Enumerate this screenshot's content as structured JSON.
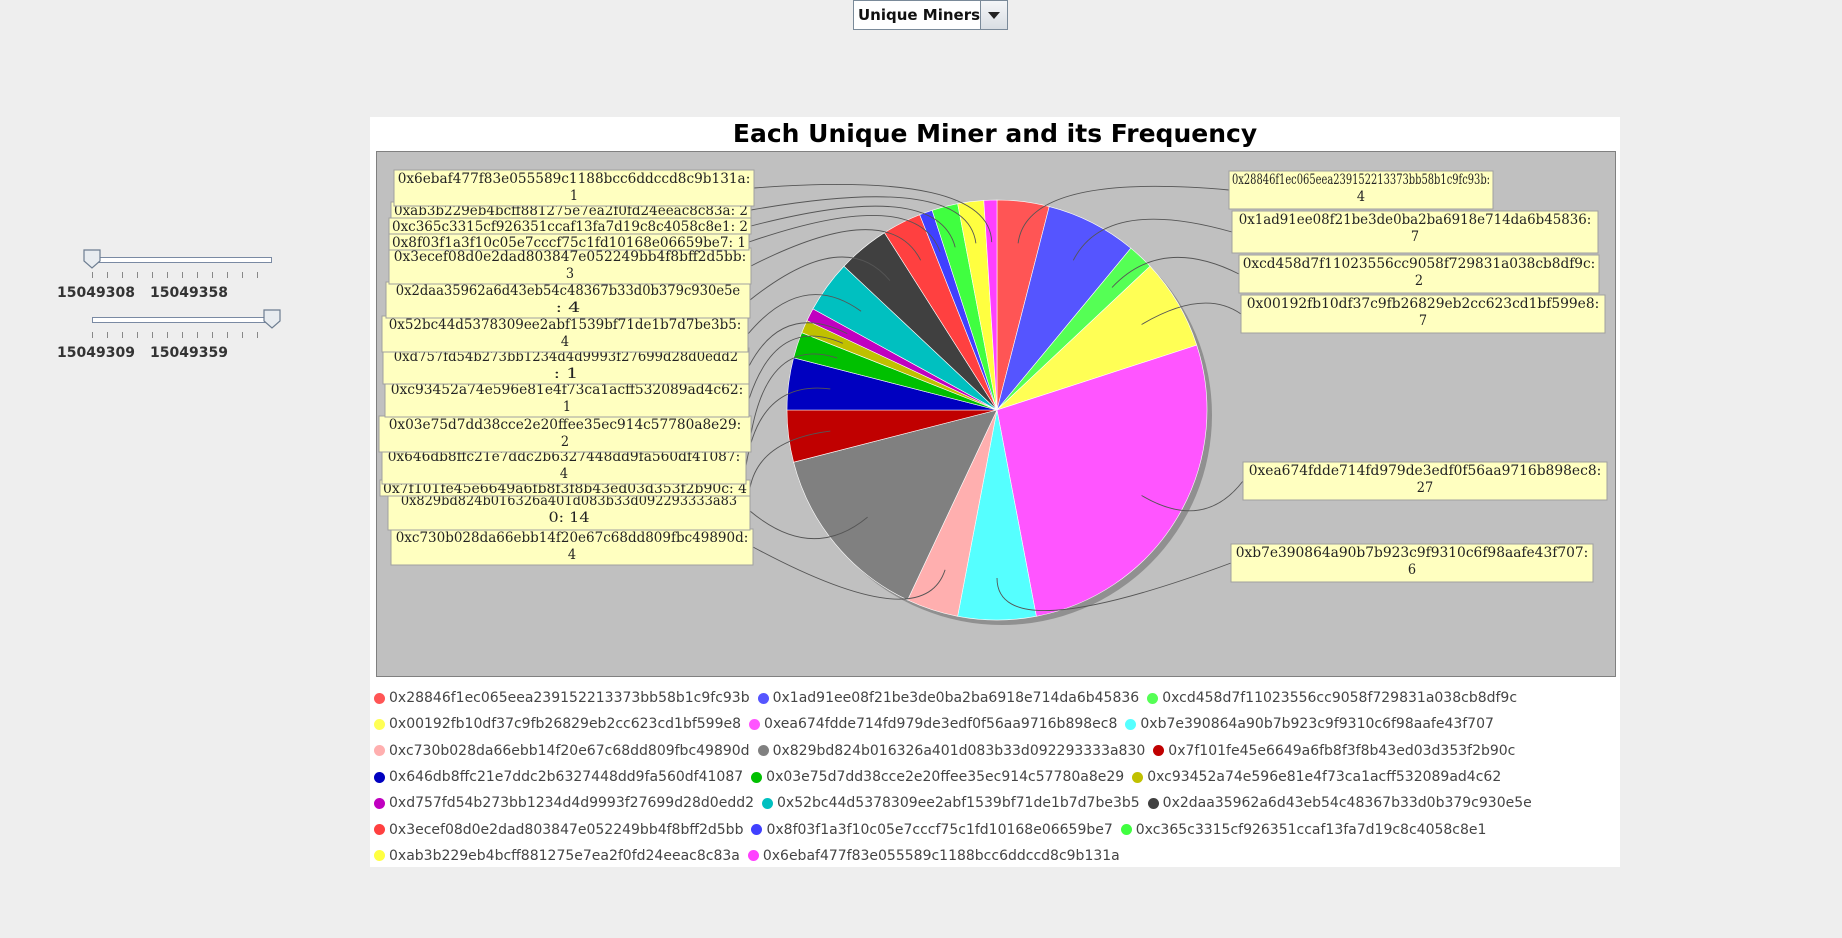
{
  "dropdown": {
    "selected": "Unique Miners"
  },
  "sliders": [
    {
      "min": 15049308,
      "max": 15049358,
      "value": 15049308,
      "labels": [
        "15049308",
        "15049358"
      ]
    },
    {
      "min": 15049309,
      "max": 15049359,
      "value": 15049359,
      "labels": [
        "15049309",
        "15049359"
      ]
    }
  ],
  "chart_data": {
    "type": "pie",
    "title": "Each Unique Miner and its Frequency",
    "background": "#c0c0c0",
    "slices": [
      {
        "label": "0x28846f1ec065eea239152213373bb58b1c9fc93b",
        "value": 4,
        "color": "#ff5555",
        "label_text": [
          "0x28846f1ec065eea239152213373bb58b1c9fc93b:",
          "4"
        ]
      },
      {
        "label": "0x1ad91ee08f21be3de0ba2ba6918e714da6b45836",
        "value": 7,
        "color": "#5555ff",
        "label_text": [
          "0x1ad91ee08f21be3de0ba2ba6918e714da6b45836:",
          "7"
        ]
      },
      {
        "label": "0xcd458d7f11023556cc9058f729831a038cb8df9c",
        "value": 2,
        "color": "#55ff55",
        "label_text": [
          "0xcd458d7f11023556cc9058f729831a038cb8df9c:",
          "2"
        ]
      },
      {
        "label": "0x00192fb10df37c9fb26829eb2cc623cd1bf599e8",
        "value": 7,
        "color": "#ffff55",
        "label_text": [
          "0x00192fb10df37c9fb26829eb2cc623cd1bf599e8:",
          "7"
        ]
      },
      {
        "label": "0xea674fdde714fd979de3edf0f56aa9716b898ec8",
        "value": 27,
        "color": "#ff55ff",
        "label_text": [
          "0xea674fdde714fd979de3edf0f56aa9716b898ec8:",
          "27"
        ]
      },
      {
        "label": "0xb7e390864a90b7b923c9f9310c6f98aafe43f707",
        "value": 6,
        "color": "#55ffff",
        "label_text": [
          "0xb7e390864a90b7b923c9f9310c6f98aafe43f707:",
          "6"
        ]
      },
      {
        "label": "0xc730b028da66ebb14f20e67c68dd809fbc49890d",
        "value": 4,
        "color": "#ffafaf",
        "label_text": [
          "0xc730b028da66ebb14f20e67c68dd809fbc49890d:",
          "4"
        ]
      },
      {
        "label": "0x829bd824b016326a401d083b33d092293333a830",
        "value": 14,
        "color": "#808080",
        "label_text": [
          "0x829bd824b016326a401d083b33d092293333a83",
          "0: 14"
        ]
      },
      {
        "label": "0x7f101fe45e6649a6fb8f3f8b43ed03d353f2b90c",
        "value": 4,
        "color": "#c00000",
        "label_text": [
          "0x7f101fe45e6649a6fb8f3f8b43ed03d353f2b90c: 4"
        ]
      },
      {
        "label": "0x646db8ffc21e7ddc2b6327448dd9fa560df41087",
        "value": 4,
        "color": "#0000c0",
        "label_text": [
          "0x646db8ffc21e7ddc2b6327448dd9fa560df41087:",
          "4"
        ]
      },
      {
        "label": "0x03e75d7dd38cce2e20ffee35ec914c57780a8e29",
        "value": 2,
        "color": "#00c000",
        "label_text": [
          "0x03e75d7dd38cce2e20ffee35ec914c57780a8e29:",
          "2"
        ]
      },
      {
        "label": "0xc93452a74e596e81e4f73ca1acff532089ad4c62",
        "value": 1,
        "color": "#c0c000",
        "label_text": [
          "0xc93452a74e596e81e4f73ca1acff532089ad4c62:",
          "1"
        ]
      },
      {
        "label": "0xd757fd54b273bb1234d4d9993f27699d28d0edd2",
        "value": 1,
        "color": "#c000c0",
        "label_text": [
          "0xd757fd54b273bb1234d4d9993f27699d28d0edd2",
          ": 1"
        ]
      },
      {
        "label": "0x52bc44d5378309ee2abf1539bf71de1b7d7be3b5",
        "value": 4,
        "color": "#00c0c0",
        "label_text": [
          "0x52bc44d5378309ee2abf1539bf71de1b7d7be3b5:",
          "4"
        ]
      },
      {
        "label": "0x2daa35962a6d43eb54c48367b33d0b379c930e5e",
        "value": 4,
        "color": "#404040",
        "label_text": [
          "0x2daa35962a6d43eb54c48367b33d0b379c930e5e",
          ": 4"
        ]
      },
      {
        "label": "0x3ecef08d0e2dad803847e052249bb4f8bff2d5bb",
        "value": 3,
        "color": "#ff4040",
        "label_text": [
          "0x3ecef08d0e2dad803847e052249bb4f8bff2d5bb:",
          "3"
        ]
      },
      {
        "label": "0x8f03f1a3f10c05e7cccf75c1fd10168e06659be7",
        "value": 1,
        "color": "#4040ff",
        "label_text": [
          "0x8f03f1a3f10c05e7cccf75c1fd10168e06659be7: 1"
        ]
      },
      {
        "label": "0xc365c3315cf926351ccaf13fa7d19c8c4058c8e1",
        "value": 2,
        "color": "#40ff40",
        "label_text": [
          "0xc365c3315cf926351ccaf13fa7d19c8c4058c8e1: 2"
        ]
      },
      {
        "label": "0xab3b229eb4bcff881275e7ea2f0fd24eeac8c83a",
        "value": 2,
        "color": "#ffff40",
        "label_text": [
          "0xab3b229eb4bcff881275e7ea2f0fd24eeac8c83a: 2"
        ]
      },
      {
        "label": "0x6ebaf477f83e055589c1188bcc6ddccd8c9b131a",
        "value": 1,
        "color": "#ff40ff",
        "label_text": [
          "0x6ebaf477f83e055589c1188bcc6ddccd8c9b131a:",
          "1"
        ]
      }
    ],
    "legend_placement": "bottom"
  }
}
